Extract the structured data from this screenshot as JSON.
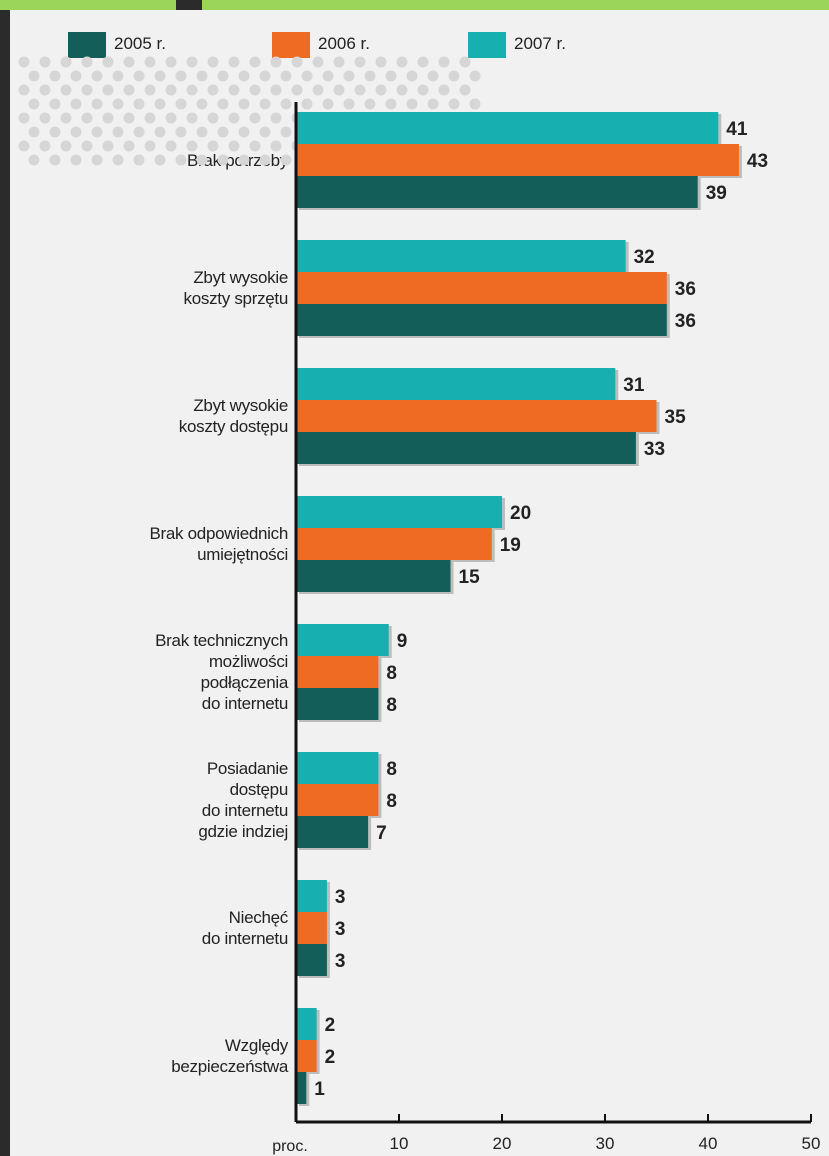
{
  "chart_data": {
    "type": "bar",
    "orientation": "horizontal",
    "categories": [
      "Brak potrzeby",
      "Zbyt wysokie\nkoszty sprzętu",
      "Zbyt wysokie\nkoszty dostępu",
      "Brak odpowiednich\numiejętności",
      "Brak technicznych\nmożliwości\npodłączenia\ndo internetu",
      "Posiadanie\ndostępu\ndo internetu\ngdzie indziej",
      "Niechęć\ndo internetu",
      "Względy\nbezpieczeństwa"
    ],
    "series": [
      {
        "name": "2007 r.",
        "color": "#17b0b0",
        "values": [
          41,
          32,
          31,
          20,
          9,
          8,
          3,
          2
        ]
      },
      {
        "name": "2006 r.",
        "color": "#ef6a22",
        "values": [
          43,
          36,
          35,
          19,
          8,
          8,
          3,
          2
        ]
      },
      {
        "name": "2005 r.",
        "color": "#135e58",
        "values": [
          39,
          36,
          33,
          15,
          8,
          7,
          3,
          1
        ]
      }
    ],
    "legend_order": [
      "2005 r.",
      "2006 r.",
      "2007 r."
    ],
    "x_ticks": [
      10,
      20,
      30,
      40,
      50
    ],
    "xlim": [
      0,
      50
    ],
    "unit_label": "proc.",
    "legend_position": "top",
    "grid": false
  }
}
